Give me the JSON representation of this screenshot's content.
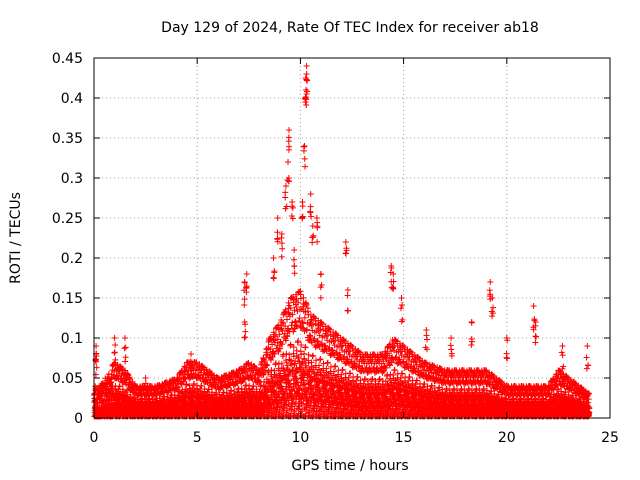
{
  "chart_data": {
    "type": "scatter",
    "title": "Day 129 of 2024, Rate Of TEC Index for receiver ab18",
    "xlabel": "GPS time / hours",
    "ylabel": "ROTI / TECUs",
    "xlim": [
      0,
      25
    ],
    "ylim": [
      0,
      0.45
    ],
    "grid": true,
    "marker": "+",
    "series_color": "#ff0000",
    "x_ticks": [
      {
        "value": 0,
        "label": "0"
      },
      {
        "value": 5,
        "label": "5"
      },
      {
        "value": 10,
        "label": "10"
      },
      {
        "value": 15,
        "label": "15"
      },
      {
        "value": 20,
        "label": "20"
      },
      {
        "value": 25,
        "label": "25"
      }
    ],
    "y_ticks": [
      {
        "value": 0,
        "label": "0"
      },
      {
        "value": 0.05,
        "label": "0.05"
      },
      {
        "value": 0.1,
        "label": "0.1"
      },
      {
        "value": 0.15,
        "label": "0.15"
      },
      {
        "value": 0.2,
        "label": "0.2"
      },
      {
        "value": 0.25,
        "label": "0.25"
      },
      {
        "value": 0.3,
        "label": "0.3"
      },
      {
        "value": 0.35,
        "label": "0.35"
      },
      {
        "value": 0.4,
        "label": "0.4"
      },
      {
        "value": 0.45,
        "label": "0.45"
      }
    ],
    "envelope": [
      [
        0.0,
        0.04
      ],
      [
        0.5,
        0.05
      ],
      [
        1.0,
        0.07
      ],
      [
        1.5,
        0.06
      ],
      [
        2.0,
        0.04
      ],
      [
        3.0,
        0.04
      ],
      [
        4.0,
        0.05
      ],
      [
        4.5,
        0.07
      ],
      [
        5.0,
        0.07
      ],
      [
        6.0,
        0.05
      ],
      [
        7.0,
        0.06
      ],
      [
        7.5,
        0.07
      ],
      [
        8.0,
        0.06
      ],
      [
        8.5,
        0.1
      ],
      [
        9.0,
        0.12
      ],
      [
        9.5,
        0.15
      ],
      [
        10.0,
        0.16
      ],
      [
        10.5,
        0.13
      ],
      [
        11.0,
        0.12
      ],
      [
        12.0,
        0.1
      ],
      [
        13.0,
        0.08
      ],
      [
        14.0,
        0.08
      ],
      [
        14.5,
        0.1
      ],
      [
        15.0,
        0.09
      ],
      [
        16.0,
        0.07
      ],
      [
        17.0,
        0.06
      ],
      [
        18.0,
        0.06
      ],
      [
        19.0,
        0.06
      ],
      [
        20.0,
        0.04
      ],
      [
        21.0,
        0.04
      ],
      [
        22.0,
        0.04
      ],
      [
        22.5,
        0.06
      ],
      [
        23.0,
        0.05
      ],
      [
        23.5,
        0.04
      ],
      [
        24.0,
        0.03
      ]
    ],
    "highlight_points": [
      [
        0.1,
        0.08
      ],
      [
        0.1,
        0.09
      ],
      [
        1.0,
        0.1
      ],
      [
        1.5,
        0.1
      ],
      [
        2.5,
        0.05
      ],
      [
        4.7,
        0.08
      ],
      [
        7.3,
        0.17
      ],
      [
        7.4,
        0.18
      ],
      [
        7.3,
        0.12
      ],
      [
        8.7,
        0.2
      ],
      [
        8.9,
        0.25
      ],
      [
        9.1,
        0.23
      ],
      [
        9.3,
        0.29
      ],
      [
        9.4,
        0.32
      ],
      [
        9.45,
        0.36
      ],
      [
        9.6,
        0.27
      ],
      [
        9.7,
        0.21
      ],
      [
        10.1,
        0.27
      ],
      [
        10.2,
        0.34
      ],
      [
        10.25,
        0.4
      ],
      [
        10.3,
        0.43
      ],
      [
        10.3,
        0.44
      ],
      [
        10.5,
        0.28
      ],
      [
        10.6,
        0.24
      ],
      [
        10.8,
        0.25
      ],
      [
        11.0,
        0.18
      ],
      [
        12.2,
        0.22
      ],
      [
        12.3,
        0.16
      ],
      [
        14.4,
        0.19
      ],
      [
        14.5,
        0.18
      ],
      [
        14.9,
        0.15
      ],
      [
        16.1,
        0.11
      ],
      [
        17.3,
        0.1
      ],
      [
        18.3,
        0.12
      ],
      [
        19.2,
        0.17
      ],
      [
        19.3,
        0.15
      ],
      [
        20.0,
        0.1
      ],
      [
        21.3,
        0.14
      ],
      [
        21.4,
        0.12
      ],
      [
        22.7,
        0.09
      ],
      [
        23.9,
        0.09
      ]
    ]
  }
}
